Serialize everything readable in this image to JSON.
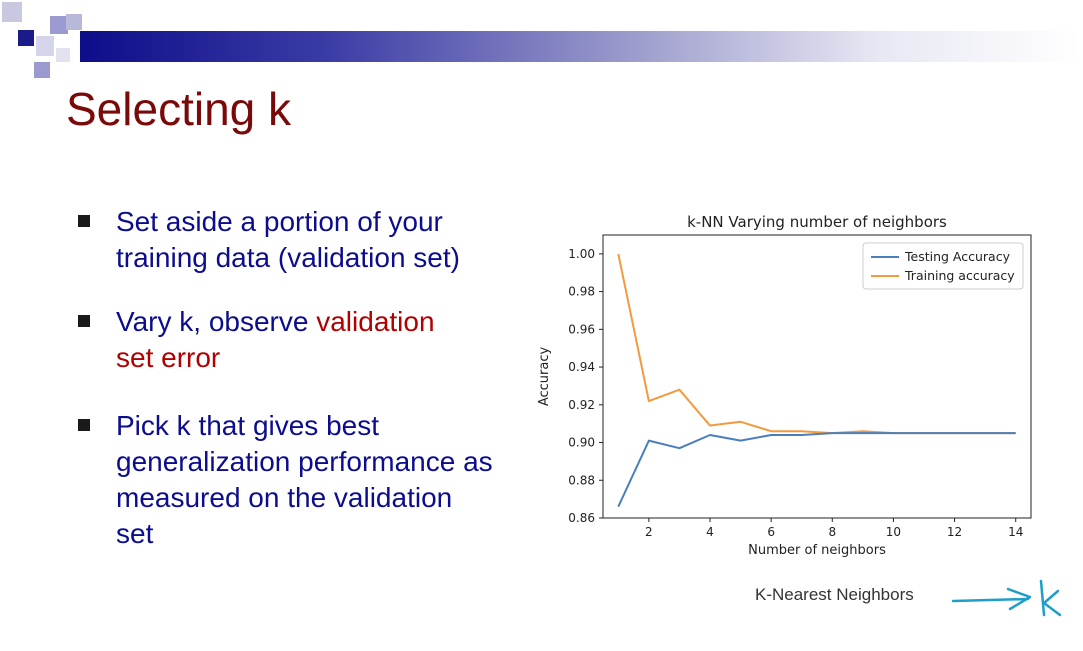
{
  "slide": {
    "title": "Selecting k",
    "bullets": [
      {
        "pre": "Set aside a portion of your training data (validation set)",
        "hl": "",
        "post": ""
      },
      {
        "pre": "Vary k, observe ",
        "hl": "validation set error",
        "post": ""
      },
      {
        "pre": "Pick k that gives best generalization performance as measured on the validation set",
        "hl": "",
        "post": ""
      }
    ],
    "caption": "K-Nearest Neighbors",
    "colors": {
      "title": "#7a0a0a",
      "text": "#0c0c8e",
      "highlight": "#b00000",
      "annotation": "#1e9ec8"
    }
  },
  "chart_data": {
    "type": "line",
    "title": "k-NN Varying number of neighbors",
    "xlabel": "Number of neighbors",
    "ylabel": "Accuracy",
    "x": [
      1,
      2,
      3,
      4,
      5,
      6,
      7,
      8,
      9,
      10,
      11,
      12,
      13,
      14
    ],
    "series": [
      {
        "name": "Testing Accuracy",
        "color": "#4a7fbd",
        "values": [
          0.866,
          0.901,
          0.897,
          0.904,
          0.901,
          0.904,
          0.904,
          0.905,
          0.905,
          0.905,
          0.905,
          0.905,
          0.905,
          0.905
        ]
      },
      {
        "name": "Training accuracy",
        "color": "#f39a3e",
        "values": [
          1.0,
          0.922,
          0.928,
          0.909,
          0.911,
          0.906,
          0.906,
          0.905,
          0.906,
          0.905,
          0.905,
          0.905,
          0.905,
          0.905
        ]
      }
    ],
    "xlim": [
      0.5,
      14.5
    ],
    "ylim": [
      0.86,
      1.01
    ],
    "xticks": [
      "2",
      "4",
      "6",
      "8",
      "10",
      "12",
      "14"
    ],
    "yticks": [
      "0.86",
      "0.88",
      "0.90",
      "0.92",
      "0.94",
      "0.96",
      "0.98",
      "1.00"
    ],
    "grid": false,
    "legend": "top-right"
  }
}
